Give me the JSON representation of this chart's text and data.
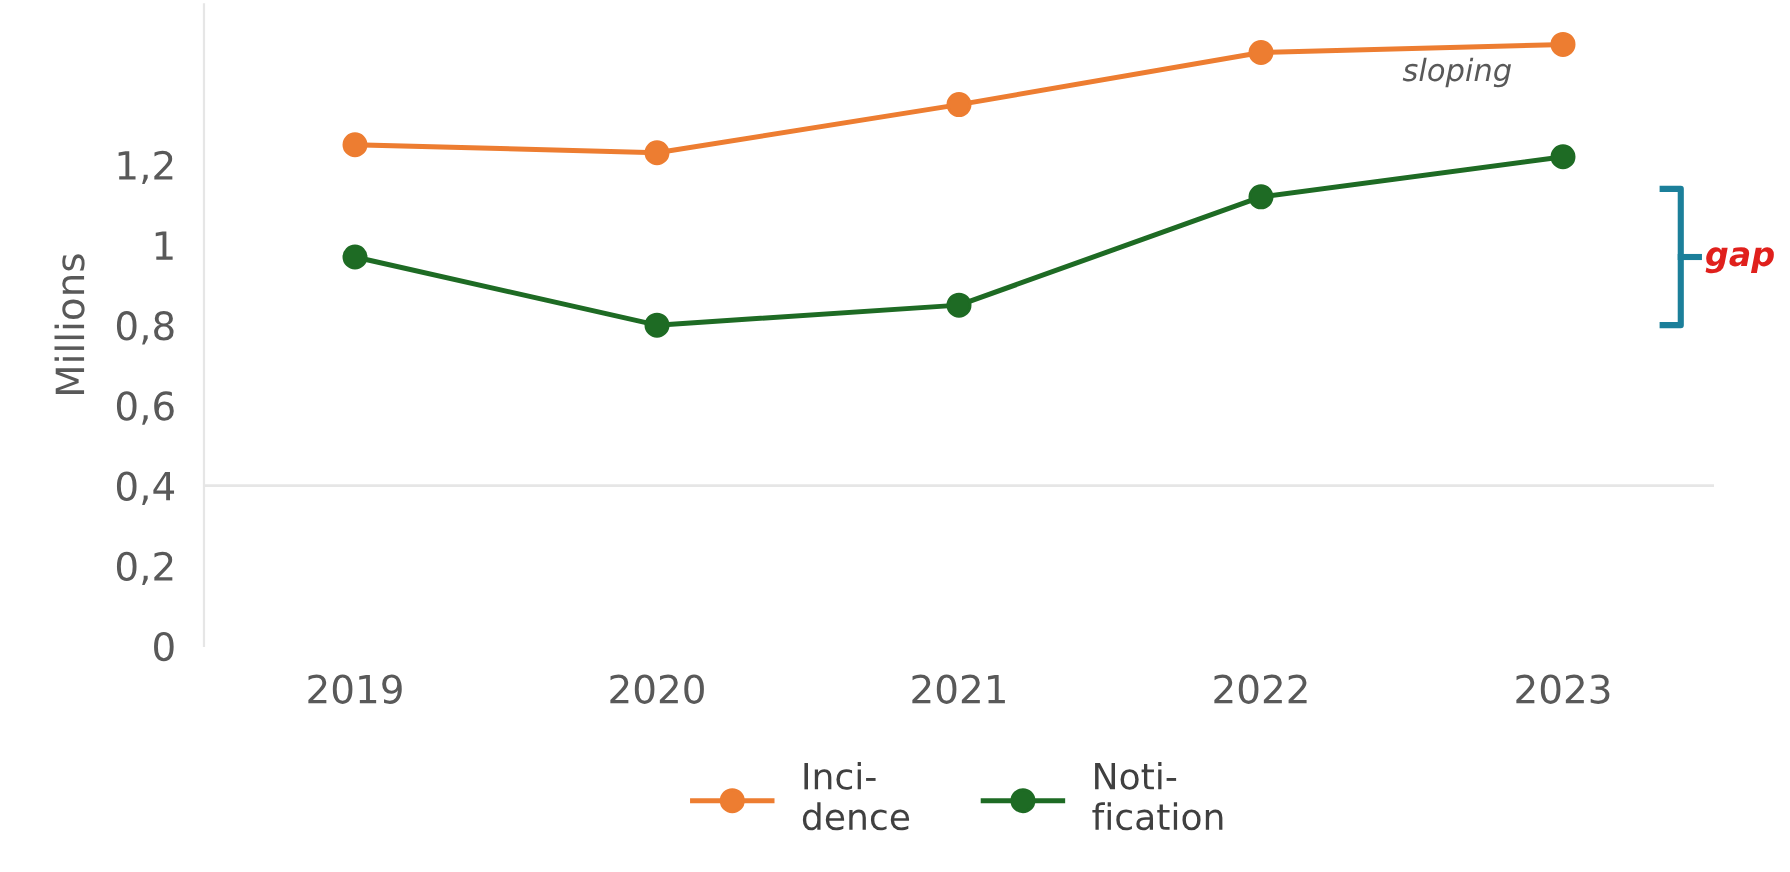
{
  "chart_data": {
    "type": "line",
    "ylabel": "Millions",
    "categories": [
      "2019",
      "2020",
      "2021",
      "2022",
      "2023"
    ],
    "series": [
      {
        "name": "Inci-\ndence",
        "color": "#ed7d31",
        "values": [
          1.25,
          1.23,
          1.35,
          1.48,
          1.5
        ]
      },
      {
        "name": "Noti-\nfication",
        "color": "#1e6b24",
        "values": [
          0.97,
          0.8,
          0.85,
          1.12,
          1.22
        ]
      }
    ],
    "ylim": [
      0,
      1.6
    ],
    "yticks": [
      0,
      {
        "value": 0.2,
        "label": "0,2"
      },
      {
        "value": 0.4,
        "label": "0,4"
      },
      {
        "value": 0.6,
        "label": "0,6"
      },
      {
        "value": 0.8,
        "label": "0,8"
      },
      1,
      {
        "value": 1.2,
        "label": "1,2"
      }
    ],
    "ref_lines": [
      {
        "axis": "y",
        "value": 0.4,
        "color": "#e6e6e6"
      }
    ],
    "annotations": [
      "sloping",
      "gap"
    ],
    "legend": "bottom",
    "marker": "circle",
    "line_style": "solid",
    "grid": false
  }
}
